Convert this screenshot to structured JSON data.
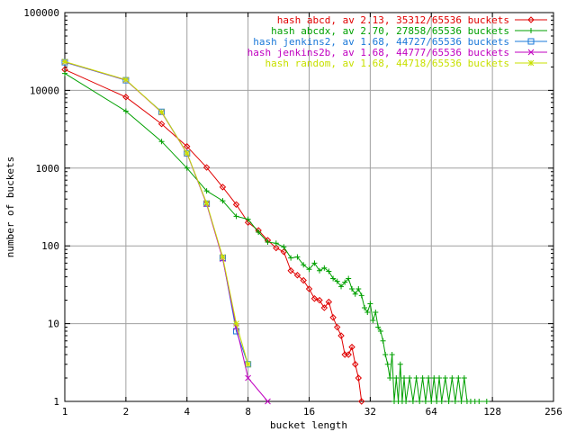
{
  "chart_data": {
    "type": "line",
    "title": "",
    "xlabel": "bucket length",
    "ylabel": "number of buckets",
    "xscale": "log2",
    "yscale": "log10",
    "xlim": [
      1,
      256
    ],
    "ylim": [
      1,
      100000
    ],
    "grid": true,
    "legend_placement": "top-right",
    "x_ticks": [
      "1",
      "2",
      "4",
      "8",
      "16",
      "32",
      "64",
      "128",
      "256"
    ],
    "y_ticks": [
      "1",
      "10",
      "100",
      "1000",
      "10000",
      "100000"
    ],
    "series": [
      {
        "name": "hash abcd, av 2.13, 35312/65536 buckets",
        "color": "#e00000",
        "marker": "diamond",
        "points": [
          [
            1,
            18500
          ],
          [
            2,
            8200
          ],
          [
            3,
            3700
          ],
          [
            4,
            1900
          ],
          [
            5,
            1020
          ],
          [
            6,
            570
          ],
          [
            7,
            340
          ],
          [
            8,
            200
          ],
          [
            9,
            158
          ],
          [
            10,
            118
          ],
          [
            11,
            94
          ],
          [
            12,
            84
          ],
          [
            13,
            48
          ],
          [
            14,
            42
          ],
          [
            15,
            36
          ],
          [
            16,
            28
          ],
          [
            17,
            21
          ],
          [
            18,
            20
          ],
          [
            19,
            16
          ],
          [
            20,
            19
          ],
          [
            21,
            12
          ],
          [
            22,
            9
          ],
          [
            23,
            7
          ],
          [
            24,
            4
          ],
          [
            25,
            4
          ],
          [
            26,
            5
          ],
          [
            27,
            3
          ],
          [
            28,
            2
          ],
          [
            29,
            1
          ]
        ]
      },
      {
        "name": "hash abcdx, av 2.70, 27858/65536 buckets",
        "color": "#00a000",
        "marker": "plus",
        "points": [
          [
            1,
            16500
          ],
          [
            2,
            5400
          ],
          [
            3,
            2200
          ],
          [
            4,
            1000
          ],
          [
            5,
            510
          ],
          [
            6,
            380
          ],
          [
            7,
            240
          ],
          [
            8,
            220
          ],
          [
            9,
            150
          ],
          [
            10,
            112
          ],
          [
            11,
            108
          ],
          [
            12,
            97
          ],
          [
            13,
            70
          ],
          [
            14,
            72
          ],
          [
            15,
            57
          ],
          [
            16,
            50
          ],
          [
            17,
            60
          ],
          [
            18,
            48
          ],
          [
            19,
            52
          ],
          [
            20,
            47
          ],
          [
            21,
            38
          ],
          [
            22,
            35
          ],
          [
            23,
            30
          ],
          [
            24,
            34
          ],
          [
            25,
            38
          ],
          [
            26,
            28
          ],
          [
            27,
            24
          ],
          [
            28,
            28
          ],
          [
            29,
            23
          ],
          [
            30,
            16
          ],
          [
            31,
            14
          ],
          [
            32,
            18
          ],
          [
            33,
            11
          ],
          [
            34,
            14
          ],
          [
            35,
            9
          ],
          [
            36,
            8
          ],
          [
            37,
            6
          ],
          [
            38,
            4
          ],
          [
            39,
            3
          ],
          [
            40,
            2
          ],
          [
            41,
            4
          ],
          [
            42,
            1
          ],
          [
            43,
            2
          ],
          [
            44,
            1
          ],
          [
            45,
            3
          ],
          [
            46,
            1
          ],
          [
            47,
            2
          ],
          [
            48,
            1
          ],
          [
            50,
            2
          ],
          [
            52,
            1
          ],
          [
            54,
            2
          ],
          [
            56,
            1
          ],
          [
            58,
            2
          ],
          [
            60,
            1
          ],
          [
            62,
            2
          ],
          [
            64,
            1
          ],
          [
            66,
            2
          ],
          [
            68,
            1
          ],
          [
            70,
            2
          ],
          [
            72,
            1
          ],
          [
            75,
            2
          ],
          [
            78,
            1
          ],
          [
            81,
            2
          ],
          [
            84,
            1
          ],
          [
            87,
            2
          ],
          [
            90,
            1
          ],
          [
            93,
            2
          ],
          [
            96,
            1
          ],
          [
            100,
            1
          ],
          [
            105,
            1
          ],
          [
            110,
            1
          ],
          [
            120,
            1
          ]
        ]
      },
      {
        "name": "hash jenkins2, av 1.68, 44727/65536 buckets",
        "color": "#1a78d8",
        "marker": "square",
        "points": [
          [
            1,
            23000
          ],
          [
            2,
            13500
          ],
          [
            3,
            5300
          ],
          [
            4,
            1550
          ],
          [
            5,
            350
          ],
          [
            6,
            70
          ],
          [
            7,
            8
          ],
          [
            8,
            3
          ]
        ]
      },
      {
        "name": "hash jenkins2b, av 1.68, 44777/65536 buckets",
        "color": "#c000c0",
        "marker": "x",
        "points": [
          [
            1,
            23200
          ],
          [
            2,
            13600
          ],
          [
            3,
            5200
          ],
          [
            4,
            1550
          ],
          [
            5,
            345
          ],
          [
            6,
            68
          ],
          [
            7,
            9
          ],
          [
            8,
            2
          ],
          [
            10,
            1
          ]
        ]
      },
      {
        "name": "hash random, av 1.68, 44718/65536 buckets",
        "color": "#c8e000",
        "marker": "star",
        "points": [
          [
            1,
            23400
          ],
          [
            2,
            13700
          ],
          [
            3,
            5250
          ],
          [
            4,
            1560
          ],
          [
            5,
            355
          ],
          [
            6,
            72
          ],
          [
            7,
            10
          ],
          [
            8,
            3
          ]
        ]
      }
    ]
  }
}
